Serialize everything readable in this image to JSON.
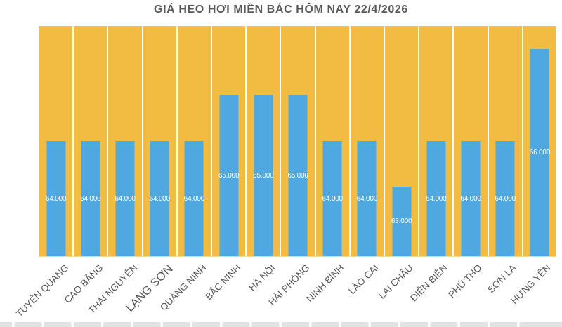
{
  "chart_data": {
    "type": "bar",
    "title": "GIÁ HEO HƠI MIỀN BẮC HÔM NAY 22/4/2026",
    "categories": [
      "TUYÊN QUANG",
      "CAO BẰNG",
      "THÁI NGUYÊN",
      "LẠNG SƠN",
      "QUẢNG NINH",
      "BẮC NINH",
      "HÀ NỘI",
      "HẢI PHÒNG",
      "NINH BÌNH",
      "LÀO CAI",
      "LAI CHÂU",
      "ĐIỆN BIÊN",
      "PHÚ THỌ",
      "SƠN LA",
      "HƯNG YÊN"
    ],
    "values": [
      64000,
      64000,
      64000,
      64000,
      64000,
      65000,
      65000,
      65000,
      64000,
      64000,
      63000,
      64000,
      64000,
      64000,
      66000
    ],
    "value_labels": [
      "64.000",
      "64.000",
      "64.000",
      "64.000",
      "64.000",
      "65.000",
      "65.000",
      "65.000",
      "64.000",
      "64.000",
      "63.000",
      "64.000",
      "64.000",
      "64.000",
      "66.000"
    ],
    "xlabel": "",
    "ylabel": "",
    "layout": {
      "legend": "none",
      "grid": false,
      "x_tick_angle_deg": 45,
      "emphasized_tick_index": 3,
      "value_label_position": "center",
      "background_columns_full_height": true
    },
    "colors": {
      "bar": "#4fa9e0",
      "background_column": "#f2bc42",
      "value_label_text": "#ffffff",
      "title_text": "#595959",
      "tick_label_text": "#595959",
      "axis_line": "#d9d9d9"
    }
  }
}
